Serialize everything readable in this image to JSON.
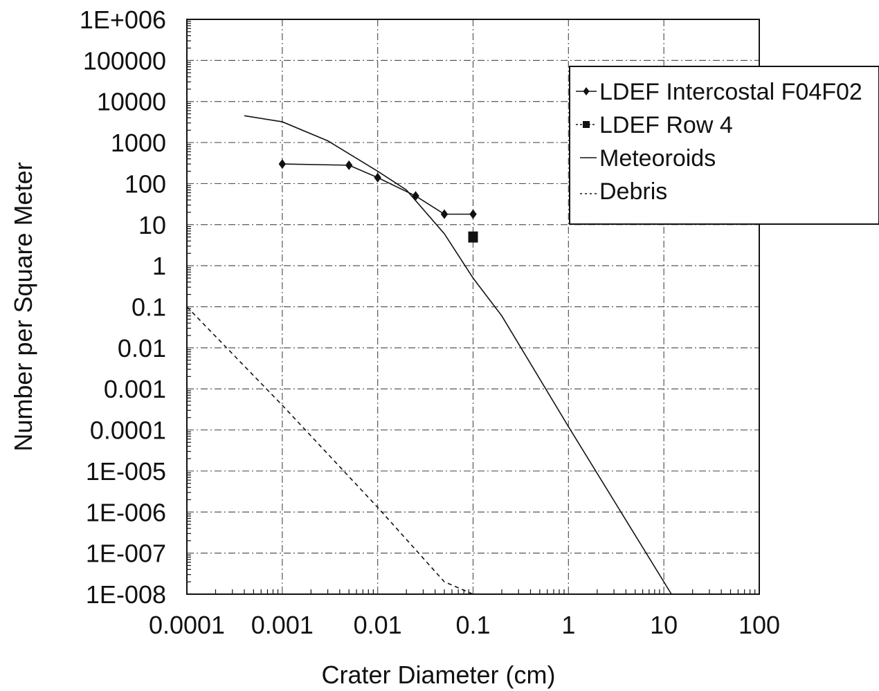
{
  "chart_data": {
    "type": "line",
    "title": "",
    "xlabel": "Crater Diameter (cm)",
    "ylabel": "Number per Square Meter",
    "xscale": "log",
    "yscale": "log",
    "xlim": [
      0.0001,
      100
    ],
    "ylim": [
      1e-08,
      1000000
    ],
    "grid": true,
    "legend_position": "top-right",
    "x_tick_labels": [
      "0.0001",
      "0.001",
      "0.01",
      "0.1",
      "1",
      "10",
      "100"
    ],
    "y_tick_labels": [
      "1E-008",
      "1E-007",
      "1E-006",
      "1E-005",
      "0.0001",
      "0.001",
      "0.01",
      "0.1",
      "1",
      "10",
      "100",
      "1000",
      "10000",
      "100000",
      "1E+006"
    ],
    "series": [
      {
        "name": "LDEF Intercostal F04F02",
        "style": "line-diamond",
        "x": [
          0.001,
          0.005,
          0.01,
          0.025,
          0.05,
          0.1
        ],
        "y": [
          300,
          280,
          140,
          50,
          18,
          18
        ]
      },
      {
        "name": "LDEF Row 4",
        "style": "square-marker",
        "x": [
          0.1
        ],
        "y": [
          5
        ]
      },
      {
        "name": "Meteoroids",
        "style": "solid",
        "x": [
          0.0004,
          0.001,
          0.003,
          0.01,
          0.02,
          0.05,
          0.1,
          0.2,
          1,
          12
        ],
        "y": [
          4500,
          3200,
          1100,
          200,
          70,
          6,
          0.5,
          0.06,
          0.00012,
          1e-08
        ]
      },
      {
        "name": "Debris",
        "style": "dashed",
        "x": [
          0.0001,
          0.001,
          0.01,
          0.05,
          0.1
        ],
        "y": [
          0.1,
          0.0004,
          1.3e-06,
          2e-08,
          1e-08
        ]
      }
    ],
    "colors": {
      "line": "#111111",
      "grid": "#555555",
      "background": "#ffffff"
    }
  }
}
